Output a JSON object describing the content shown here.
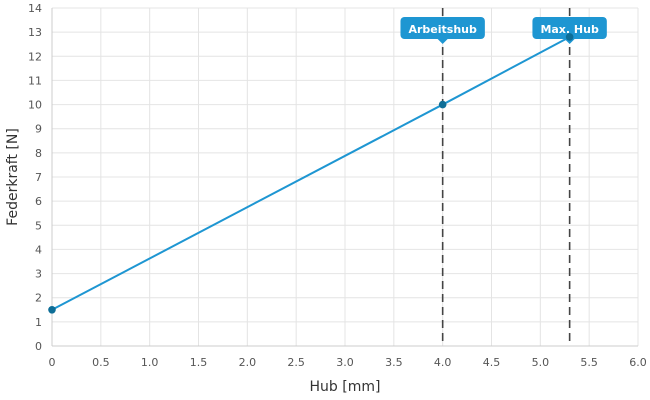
{
  "chart_data": {
    "type": "line",
    "xlabel": "Hub [mm]",
    "ylabel": "Federkraft [N]",
    "xlim": [
      0,
      6
    ],
    "ylim": [
      0,
      14
    ],
    "x_ticks": [
      "0",
      "0.5",
      "1.0",
      "1.5",
      "2.0",
      "2.5",
      "3.0",
      "3.5",
      "4.0",
      "4.5",
      "5.0",
      "5.5",
      "6.0"
    ],
    "y_ticks": [
      "0",
      "1",
      "2",
      "3",
      "4",
      "5",
      "6",
      "7",
      "8",
      "9",
      "10",
      "11",
      "12",
      "13",
      "14"
    ],
    "grid": true,
    "series": [
      {
        "x": [
          0,
          4.0,
          5.3
        ],
        "y": [
          1.5,
          10.0,
          12.8
        ],
        "color": "#1e96d2"
      }
    ],
    "markers": [
      {
        "label": "Arbeitshub",
        "x": 4.0,
        "y": 10.0
      },
      {
        "label": "Max. Hub",
        "x": 5.3,
        "y": 12.8
      }
    ],
    "colors": {
      "line": "#1e96d2",
      "point": "#0e6e97",
      "badge": "#1e96d2",
      "marker_line": "#444444",
      "grid": "#e4e4e4"
    }
  }
}
